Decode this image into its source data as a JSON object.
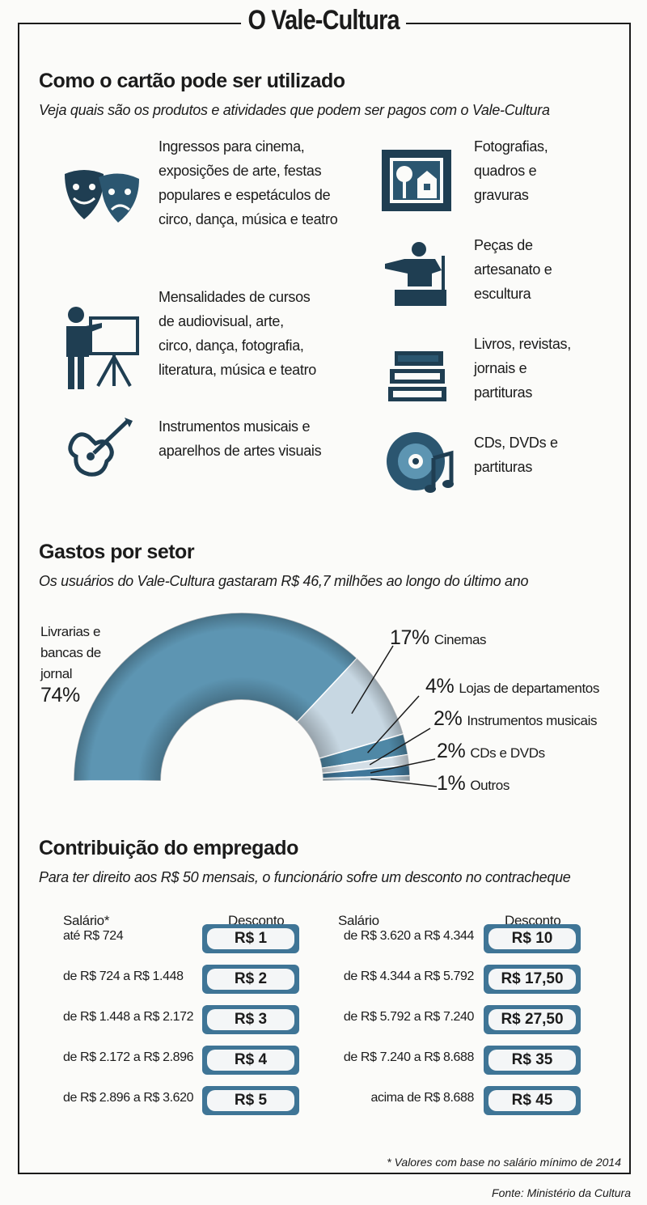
{
  "title": "O Vale-Cultura",
  "section1": {
    "heading": "Como o cartão pode ser utilizado",
    "subtitle": "Veja quais são os produtos e atividades que podem ser pagos com o Vale-Cultura",
    "items": [
      {
        "icon": "theater-masks-icon",
        "lines": [
          "Ingressos para cinema,",
          "exposições de arte, festas",
          "populares e espetáculos de",
          "circo, dança, música e teatro"
        ]
      },
      {
        "icon": "teacher-presentation-icon",
        "lines": [
          "Mensalidades de cursos",
          "de audiovisual, arte,",
          "circo, dança, fotografia,",
          "literatura, música e teatro"
        ]
      },
      {
        "icon": "guitar-icon",
        "lines": [
          "Instrumentos musicais e",
          "aparelhos de artes visuais"
        ]
      },
      {
        "icon": "framed-picture-icon",
        "lines": [
          "Fotografias,",
          "quadros e",
          "gravuras"
        ]
      },
      {
        "icon": "sculpture-icon",
        "lines": [
          "Peças de",
          "artesanato e",
          "escultura"
        ]
      },
      {
        "icon": "books-icon",
        "lines": [
          "Livros, revistas,",
          "jornais e",
          "partituras"
        ]
      },
      {
        "icon": "cd-music-icon",
        "lines": [
          "CDs, DVDs e",
          "partituras"
        ]
      }
    ]
  },
  "section2": {
    "heading": "Gastos por setor",
    "subtitle": "Os usuários do Vale-Cultura gastaram R$ 46,7 milhões ao longo do último ano"
  },
  "chart_data": {
    "type": "pie",
    "variant": "half-donut",
    "title": "Gastos por setor",
    "categories": [
      "Livrarias e bancas de jornal",
      "Cinemas",
      "Lojas de departamentos",
      "Instrumentos musicais",
      "CDs e DVDs",
      "Outros"
    ],
    "values": [
      74,
      17,
      4,
      2,
      2,
      1
    ],
    "labels": [
      "74%",
      "17%",
      "4%",
      "2%",
      "2%",
      "1%"
    ],
    "colors": [
      "#5d95b2",
      "#c7d7e2",
      "#4f88a6",
      "#d3dee6",
      "#40779a",
      "#b3c4cf"
    ]
  },
  "section3": {
    "heading": "Contribuição do empregado",
    "subtitle": "Para ter direito aos R$ 50 mensais, o funcionário sofre um desconto no contracheque",
    "col_salary_left": "Salário*",
    "col_discount": "Desconto",
    "col_salary_right": "Salário",
    "left": [
      {
        "salary": "até R$ 724",
        "discount": "R$ 1"
      },
      {
        "salary": "de R$ 724 a R$ 1.448",
        "discount": "R$ 2"
      },
      {
        "salary": "de R$ 1.448 a R$ 2.172",
        "discount": "R$ 3"
      },
      {
        "salary": "de R$ 2.172 a R$ 2.896",
        "discount": "R$ 4"
      },
      {
        "salary": "de R$ 2.896 a R$ 3.620",
        "discount": "R$ 5"
      }
    ],
    "right": [
      {
        "salary": "de R$ 3.620 a R$ 4.344",
        "discount": "R$ 10"
      },
      {
        "salary": "de R$ 4.344 a R$ 5.792",
        "discount": "R$ 17,50"
      },
      {
        "salary": "de R$ 5.792 a R$ 7.240",
        "discount": "R$ 27,50"
      },
      {
        "salary": "de R$ 7.240 a R$ 8.688",
        "discount": "R$ 35"
      },
      {
        "salary": "acima de R$ 8.688",
        "discount": "R$ 45"
      }
    ],
    "footnote": "* Valores com base no salário mínimo de 2014"
  },
  "source": "Fonte: Ministério da Cultura"
}
